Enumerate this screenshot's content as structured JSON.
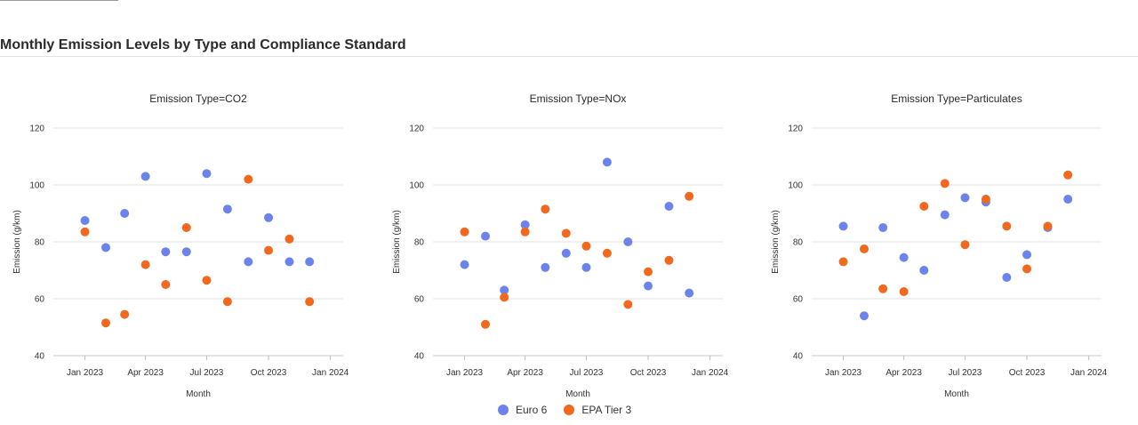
{
  "page": {
    "title": "Monthly Emission Levels by Type and Compliance Standard"
  },
  "legend": {
    "items": [
      {
        "label": "Euro 6",
        "color": "#6c83ec"
      },
      {
        "label": "EPA Tier 3",
        "color": "#f0691e"
      }
    ]
  },
  "chart_data": {
    "type": "scatter",
    "xlabel": "Month",
    "ylabel": "Emission (g/km)",
    "ylim": [
      40,
      120
    ],
    "yticks": [
      40,
      60,
      80,
      100,
      120
    ],
    "xlim": [
      "2022-11-15",
      "2024-01-20"
    ],
    "xticks": [
      {
        "date": "2023-01-01",
        "label": "Jan 2023"
      },
      {
        "date": "2023-04-01",
        "label": "Apr 2023"
      },
      {
        "date": "2023-07-01",
        "label": "Jul 2023"
      },
      {
        "date": "2023-10-01",
        "label": "Oct 2023"
      },
      {
        "date": "2024-01-01",
        "label": "Jan 2024"
      }
    ],
    "grid": "horizontal",
    "legend_position": "bottom",
    "panels": [
      {
        "title": "Emission Type=CO2",
        "series": [
          {
            "name": "Euro 6",
            "x": [
              "2023-01-01",
              "2023-02-01",
              "2023-03-01",
              "2023-04-01",
              "2023-05-01",
              "2023-06-01",
              "2023-07-01",
              "2023-08-01",
              "2023-09-01",
              "2023-10-01",
              "2023-11-01",
              "2023-12-01"
            ],
            "y": [
              87.5,
              78,
              90,
              103,
              76.5,
              76.5,
              104,
              91.5,
              73,
              88.5,
              73,
              73
            ]
          },
          {
            "name": "EPA Tier 3",
            "x": [
              "2023-01-01",
              "2023-02-01",
              "2023-03-01",
              "2023-04-01",
              "2023-05-01",
              "2023-06-01",
              "2023-07-01",
              "2023-08-01",
              "2023-09-01",
              "2023-10-01",
              "2023-11-01",
              "2023-12-01"
            ],
            "y": [
              83.5,
              51.5,
              54.5,
              72,
              65,
              85,
              66.5,
              59,
              102,
              77,
              81,
              59
            ]
          }
        ]
      },
      {
        "title": "Emission Type=NOx",
        "series": [
          {
            "name": "Euro 6",
            "x": [
              "2023-01-01",
              "2023-02-01",
              "2023-03-01",
              "2023-04-01",
              "2023-05-01",
              "2023-06-01",
              "2023-07-01",
              "2023-08-01",
              "2023-09-01",
              "2023-10-01",
              "2023-11-01",
              "2023-12-01"
            ],
            "y": [
              72,
              82,
              63,
              86,
              71,
              76,
              71,
              108,
              80,
              64.5,
              92.5,
              62
            ]
          },
          {
            "name": "EPA Tier 3",
            "x": [
              "2023-01-01",
              "2023-02-01",
              "2023-03-01",
              "2023-04-01",
              "2023-05-01",
              "2023-06-01",
              "2023-07-01",
              "2023-08-01",
              "2023-09-01",
              "2023-10-01",
              "2023-11-01",
              "2023-12-01"
            ],
            "y": [
              83.5,
              51,
              60.5,
              83.5,
              91.5,
              83,
              78.5,
              76,
              58,
              69.5,
              73.5,
              96
            ]
          }
        ]
      },
      {
        "title": "Emission Type=Particulates",
        "series": [
          {
            "name": "Euro 6",
            "x": [
              "2023-01-01",
              "2023-02-01",
              "2023-03-01",
              "2023-04-01",
              "2023-05-01",
              "2023-06-01",
              "2023-07-01",
              "2023-08-01",
              "2023-09-01",
              "2023-10-01",
              "2023-11-01",
              "2023-12-01"
            ],
            "y": [
              85.5,
              54,
              85,
              74.5,
              70,
              89.5,
              95.5,
              94,
              67.5,
              75.5,
              85,
              95
            ]
          },
          {
            "name": "EPA Tier 3",
            "x": [
              "2023-01-01",
              "2023-02-01",
              "2023-03-01",
              "2023-04-01",
              "2023-05-01",
              "2023-06-01",
              "2023-07-01",
              "2023-08-01",
              "2023-09-01",
              "2023-10-01",
              "2023-11-01",
              "2023-12-01"
            ],
            "y": [
              73,
              77.5,
              63.5,
              62.5,
              92.5,
              100.5,
              79,
              95,
              85.5,
              70.5,
              85.5,
              103.5
            ]
          }
        ]
      }
    ]
  }
}
